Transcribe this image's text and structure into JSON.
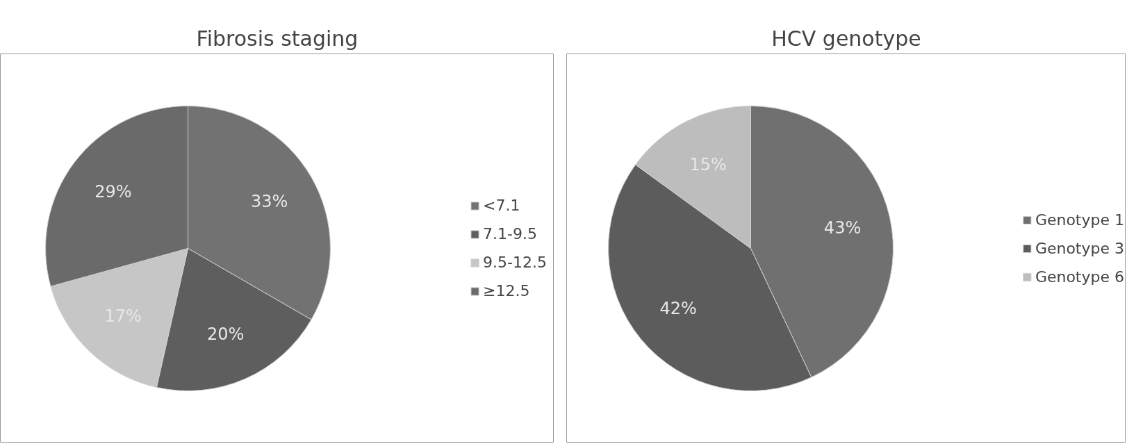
{
  "chart_data": [
    {
      "type": "pie",
      "title": "Fibrosis staging",
      "categories": [
        "<7.1",
        "7.1-9.5",
        "9.5-12.5",
        "≥12.5"
      ],
      "values": [
        33,
        20,
        17,
        29
      ],
      "colors": [
        "#727272",
        "#5e5e5e",
        "#c6c6c6",
        "#6a6a6a"
      ],
      "value_labels": [
        "33%",
        "20%",
        "17%",
        "29%"
      ],
      "legend": "right"
    },
    {
      "type": "pie",
      "title": "HCV genotype",
      "categories": [
        "Genotype 1",
        "Genotype 3",
        "Genotype 6"
      ],
      "values": [
        43,
        42,
        15
      ],
      "colors": [
        "#707070",
        "#5c5c5c",
        "#bdbdbd"
      ],
      "value_labels": [
        "43%",
        "42%",
        "15%"
      ],
      "legend": "right"
    }
  ]
}
